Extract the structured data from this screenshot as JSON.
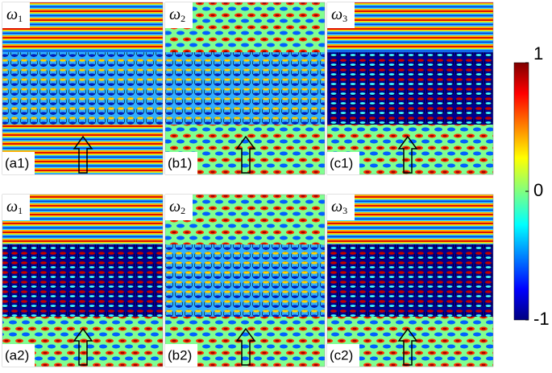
{
  "figure": {
    "panels": [
      {
        "label": "(a1)",
        "symbol": "ω",
        "subscript": "1"
      },
      {
        "label": "(b1)",
        "symbol": "ω",
        "subscript": "2"
      },
      {
        "label": "(c1)",
        "symbol": "ω",
        "subscript": "3"
      },
      {
        "label": "(a2)",
        "symbol": "ω",
        "subscript": "1"
      },
      {
        "label": "(b2)",
        "symbol": "ω",
        "subscript": "2"
      },
      {
        "label": "(c2)",
        "symbol": "ω",
        "subscript": "3"
      }
    ],
    "colorbar": {
      "lim": [
        -1,
        1
      ],
      "ticks": [
        -1,
        0,
        1
      ]
    }
  }
}
